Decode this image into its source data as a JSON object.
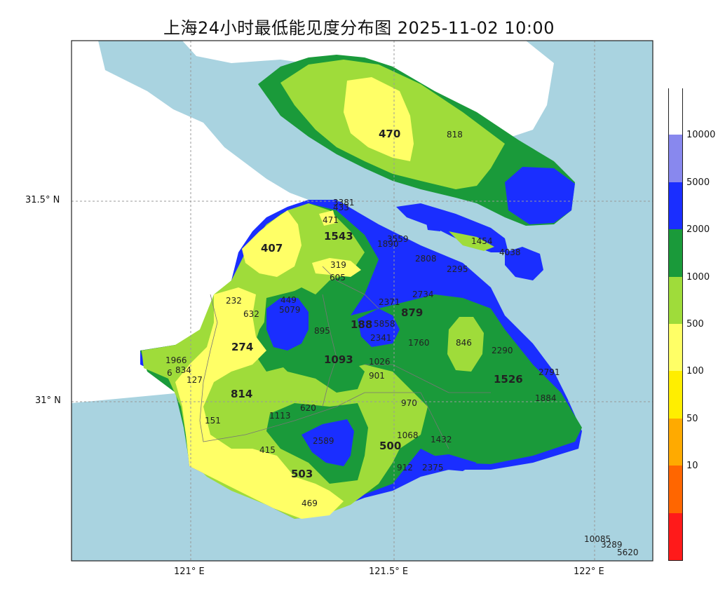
{
  "title": "上海24小时最低能见度分布图 2025-11-02 10:00",
  "axes": {
    "lat_label_1": "31.5° N",
    "lat_label_2": "31° N",
    "lon_label_1": "121° E",
    "lon_label_2": "121.5° E",
    "lon_label_3": "122° E"
  },
  "colorbar": {
    "ticks": [
      "10000",
      "5000",
      "2000",
      "1000",
      "500",
      "100",
      "50",
      "10"
    ],
    "colors": [
      "#ff1a1a",
      "#ff6600",
      "#ffaa00",
      "#ffee00",
      "#ffff66",
      "#9fdc3a",
      "#1a9a3a",
      "#1a2eff",
      "#8888ee",
      "#ffffff"
    ]
  },
  "colors": {
    "sea": "#a9d3e0",
    "land_blank": "#ffffff",
    "yellow": "#ffff66",
    "lightgreen": "#9fdc3a",
    "green": "#1a9a3a",
    "blue": "#1a2eff"
  },
  "stations": {
    "s470": "470",
    "s818": "818",
    "s3381": "3381",
    "s433": "433",
    "s471": "471",
    "s1543": "1543",
    "s3559": "3559",
    "s1890": "1890",
    "s1454": "1454",
    "s4038": "4038",
    "s407": "407",
    "s319": "319",
    "s2808": "2808",
    "s2295": "2295",
    "s605": "605",
    "s449": "449",
    "s5079": "5079",
    "s232": "232",
    "s632": "632",
    "s2734": "2734",
    "s2371": "2371",
    "s879": "879",
    "s188": "188",
    "s5858": "5858",
    "s895": "895",
    "s2341": "2341",
    "s1760": "1760",
    "s846": "846",
    "s274": "274",
    "s2290": "2290",
    "s1966": "1966",
    "s834": "834",
    "s6": "6",
    "s1093": "1093",
    "s1026": "1026",
    "s2791": "2791",
    "s127": "127",
    "s901": "901",
    "s1526": "1526",
    "s814": "814",
    "s970": "970",
    "s1884": "1884",
    "s620": "620",
    "s1113": "1113",
    "s151": "151",
    "s2589": "2589",
    "s1068": "1068",
    "s1432": "1432",
    "s500": "500",
    "s415": "415",
    "s912": "912",
    "s2375": "2375",
    "s503": "503",
    "s469": "469",
    "s10085": "10085",
    "s3289": "3289",
    "s5620": "5620"
  }
}
